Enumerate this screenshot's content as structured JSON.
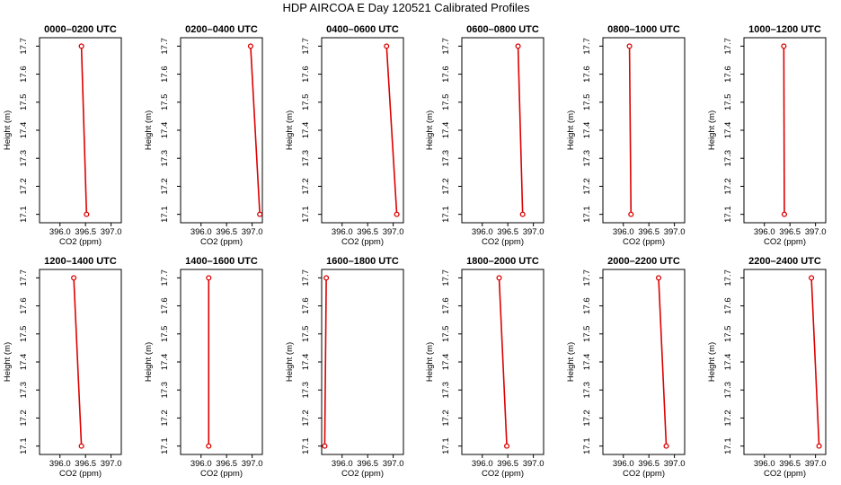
{
  "figure": {
    "title": "HDP AIRCOA E  Day 120521  Calibrated Profiles"
  },
  "chart_data": [
    {
      "type": "line",
      "title": "0000–0200 UTC",
      "xlabel": "CO2 (ppm)",
      "ylabel": "Height (m)",
      "xlim": [
        395.6,
        397.2
      ],
      "ylim": [
        17.07,
        17.73
      ],
      "xticks": [
        "396.0",
        "396.5",
        "397.0"
      ],
      "yticks": [
        "17.1",
        "17.2",
        "17.3",
        "17.4",
        "17.5",
        "17.6",
        "17.7"
      ],
      "grid": false,
      "color": "#dd0000",
      "points": [
        {
          "x": 396.42,
          "y": 17.7
        },
        {
          "x": 396.52,
          "y": 17.1
        }
      ]
    },
    {
      "type": "line",
      "title": "0200–0400 UTC",
      "xlabel": "CO2 (ppm)",
      "ylabel": "Height (m)",
      "xlim": [
        395.6,
        397.2
      ],
      "ylim": [
        17.07,
        17.73
      ],
      "xticks": [
        "396.0",
        "396.5",
        "397.0"
      ],
      "yticks": [
        "17.1",
        "17.2",
        "17.3",
        "17.4",
        "17.5",
        "17.6",
        "17.7"
      ],
      "grid": false,
      "color": "#dd0000",
      "points": [
        {
          "x": 396.97,
          "y": 17.7
        },
        {
          "x": 397.15,
          "y": 17.1
        }
      ]
    },
    {
      "type": "line",
      "title": "0400–0600 UTC",
      "xlabel": "CO2 (ppm)",
      "ylabel": "Height (m)",
      "xlim": [
        395.6,
        397.2
      ],
      "ylim": [
        17.07,
        17.73
      ],
      "xticks": [
        "396.0",
        "396.5",
        "397.0"
      ],
      "yticks": [
        "17.1",
        "17.2",
        "17.3",
        "17.4",
        "17.5",
        "17.6",
        "17.7"
      ],
      "grid": false,
      "color": "#dd0000",
      "points": [
        {
          "x": 396.87,
          "y": 17.7
        },
        {
          "x": 397.07,
          "y": 17.1
        }
      ]
    },
    {
      "type": "line",
      "title": "0600–0800 UTC",
      "xlabel": "CO2 (ppm)",
      "ylabel": "Height (m)",
      "xlim": [
        395.6,
        397.2
      ],
      "ylim": [
        17.07,
        17.73
      ],
      "xticks": [
        "396.0",
        "396.5",
        "397.0"
      ],
      "yticks": [
        "17.1",
        "17.2",
        "17.3",
        "17.4",
        "17.5",
        "17.6",
        "17.7"
      ],
      "grid": false,
      "color": "#dd0000",
      "points": [
        {
          "x": 396.7,
          "y": 17.7
        },
        {
          "x": 396.79,
          "y": 17.1
        }
      ]
    },
    {
      "type": "line",
      "title": "0800–1000 UTC",
      "xlabel": "CO2 (ppm)",
      "ylabel": "Height (m)",
      "xlim": [
        395.6,
        397.2
      ],
      "ylim": [
        17.07,
        17.73
      ],
      "xticks": [
        "396.0",
        "396.5",
        "397.0"
      ],
      "yticks": [
        "17.1",
        "17.2",
        "17.3",
        "17.4",
        "17.5",
        "17.6",
        "17.7"
      ],
      "grid": false,
      "color": "#dd0000",
      "points": [
        {
          "x": 396.12,
          "y": 17.7
        },
        {
          "x": 396.15,
          "y": 17.1
        }
      ]
    },
    {
      "type": "line",
      "title": "1000–1200 UTC",
      "xlabel": "CO2 (ppm)",
      "ylabel": "Height (m)",
      "xlim": [
        395.6,
        397.2
      ],
      "ylim": [
        17.07,
        17.73
      ],
      "xticks": [
        "396.0",
        "396.5",
        "397.0"
      ],
      "yticks": [
        "17.1",
        "17.2",
        "17.3",
        "17.4",
        "17.5",
        "17.6",
        "17.7"
      ],
      "grid": false,
      "color": "#dd0000",
      "points": [
        {
          "x": 396.38,
          "y": 17.7
        },
        {
          "x": 396.39,
          "y": 17.1
        }
      ]
    },
    {
      "type": "line",
      "title": "1200–1400 UTC",
      "xlabel": "CO2 (ppm)",
      "ylabel": "Height (m)",
      "xlim": [
        395.6,
        397.2
      ],
      "ylim": [
        17.07,
        17.73
      ],
      "xticks": [
        "396.0",
        "396.5",
        "397.0"
      ],
      "yticks": [
        "17.1",
        "17.2",
        "17.3",
        "17.4",
        "17.5",
        "17.6",
        "17.7"
      ],
      "grid": false,
      "color": "#dd0000",
      "points": [
        {
          "x": 396.27,
          "y": 17.7
        },
        {
          "x": 396.42,
          "y": 17.1
        }
      ]
    },
    {
      "type": "line",
      "title": "1400–1600 UTC",
      "xlabel": "CO2 (ppm)",
      "ylabel": "Height (m)",
      "xlim": [
        395.6,
        397.2
      ],
      "ylim": [
        17.07,
        17.73
      ],
      "xticks": [
        "396.0",
        "396.5",
        "397.0"
      ],
      "yticks": [
        "17.1",
        "17.2",
        "17.3",
        "17.4",
        "17.5",
        "17.6",
        "17.7"
      ],
      "grid": false,
      "color": "#dd0000",
      "points": [
        {
          "x": 396.15,
          "y": 17.7
        },
        {
          "x": 396.15,
          "y": 17.1
        }
      ]
    },
    {
      "type": "line",
      "title": "1600–1800 UTC",
      "xlabel": "CO2 (ppm)",
      "ylabel": "Height (m)",
      "xlim": [
        395.6,
        397.2
      ],
      "ylim": [
        17.07,
        17.73
      ],
      "xticks": [
        "396.0",
        "396.5",
        "397.0"
      ],
      "yticks": [
        "17.1",
        "17.2",
        "17.3",
        "17.4",
        "17.5",
        "17.6",
        "17.7"
      ],
      "grid": false,
      "color": "#dd0000",
      "points": [
        {
          "x": 395.69,
          "y": 17.7
        },
        {
          "x": 395.66,
          "y": 17.1
        }
      ]
    },
    {
      "type": "line",
      "title": "1800–2000 UTC",
      "xlabel": "CO2 (ppm)",
      "ylabel": "Height (m)",
      "xlim": [
        395.6,
        397.2
      ],
      "ylim": [
        17.07,
        17.73
      ],
      "xticks": [
        "396.0",
        "396.5",
        "397.0"
      ],
      "yticks": [
        "17.1",
        "17.2",
        "17.3",
        "17.4",
        "17.5",
        "17.6",
        "17.7"
      ],
      "grid": false,
      "color": "#dd0000",
      "points": [
        {
          "x": 396.33,
          "y": 17.7
        },
        {
          "x": 396.48,
          "y": 17.1
        }
      ]
    },
    {
      "type": "line",
      "title": "2000–2200 UTC",
      "xlabel": "CO2 (ppm)",
      "ylabel": "Height (m)",
      "xlim": [
        395.6,
        397.2
      ],
      "ylim": [
        17.07,
        17.73
      ],
      "xticks": [
        "396.0",
        "396.5",
        "397.0"
      ],
      "yticks": [
        "17.1",
        "17.2",
        "17.3",
        "17.4",
        "17.5",
        "17.6",
        "17.7"
      ],
      "grid": false,
      "color": "#dd0000",
      "points": [
        {
          "x": 396.69,
          "y": 17.7
        },
        {
          "x": 396.84,
          "y": 17.1
        }
      ]
    },
    {
      "type": "line",
      "title": "2200–2400 UTC",
      "xlabel": "CO2 (ppm)",
      "ylabel": "Height (m)",
      "xlim": [
        395.6,
        397.2
      ],
      "ylim": [
        17.07,
        17.73
      ],
      "xticks": [
        "396.0",
        "396.5",
        "397.0"
      ],
      "yticks": [
        "17.1",
        "17.2",
        "17.3",
        "17.4",
        "17.5",
        "17.6",
        "17.7"
      ],
      "grid": false,
      "color": "#dd0000",
      "points": [
        {
          "x": 396.92,
          "y": 17.7
        },
        {
          "x": 397.07,
          "y": 17.1
        }
      ]
    }
  ]
}
